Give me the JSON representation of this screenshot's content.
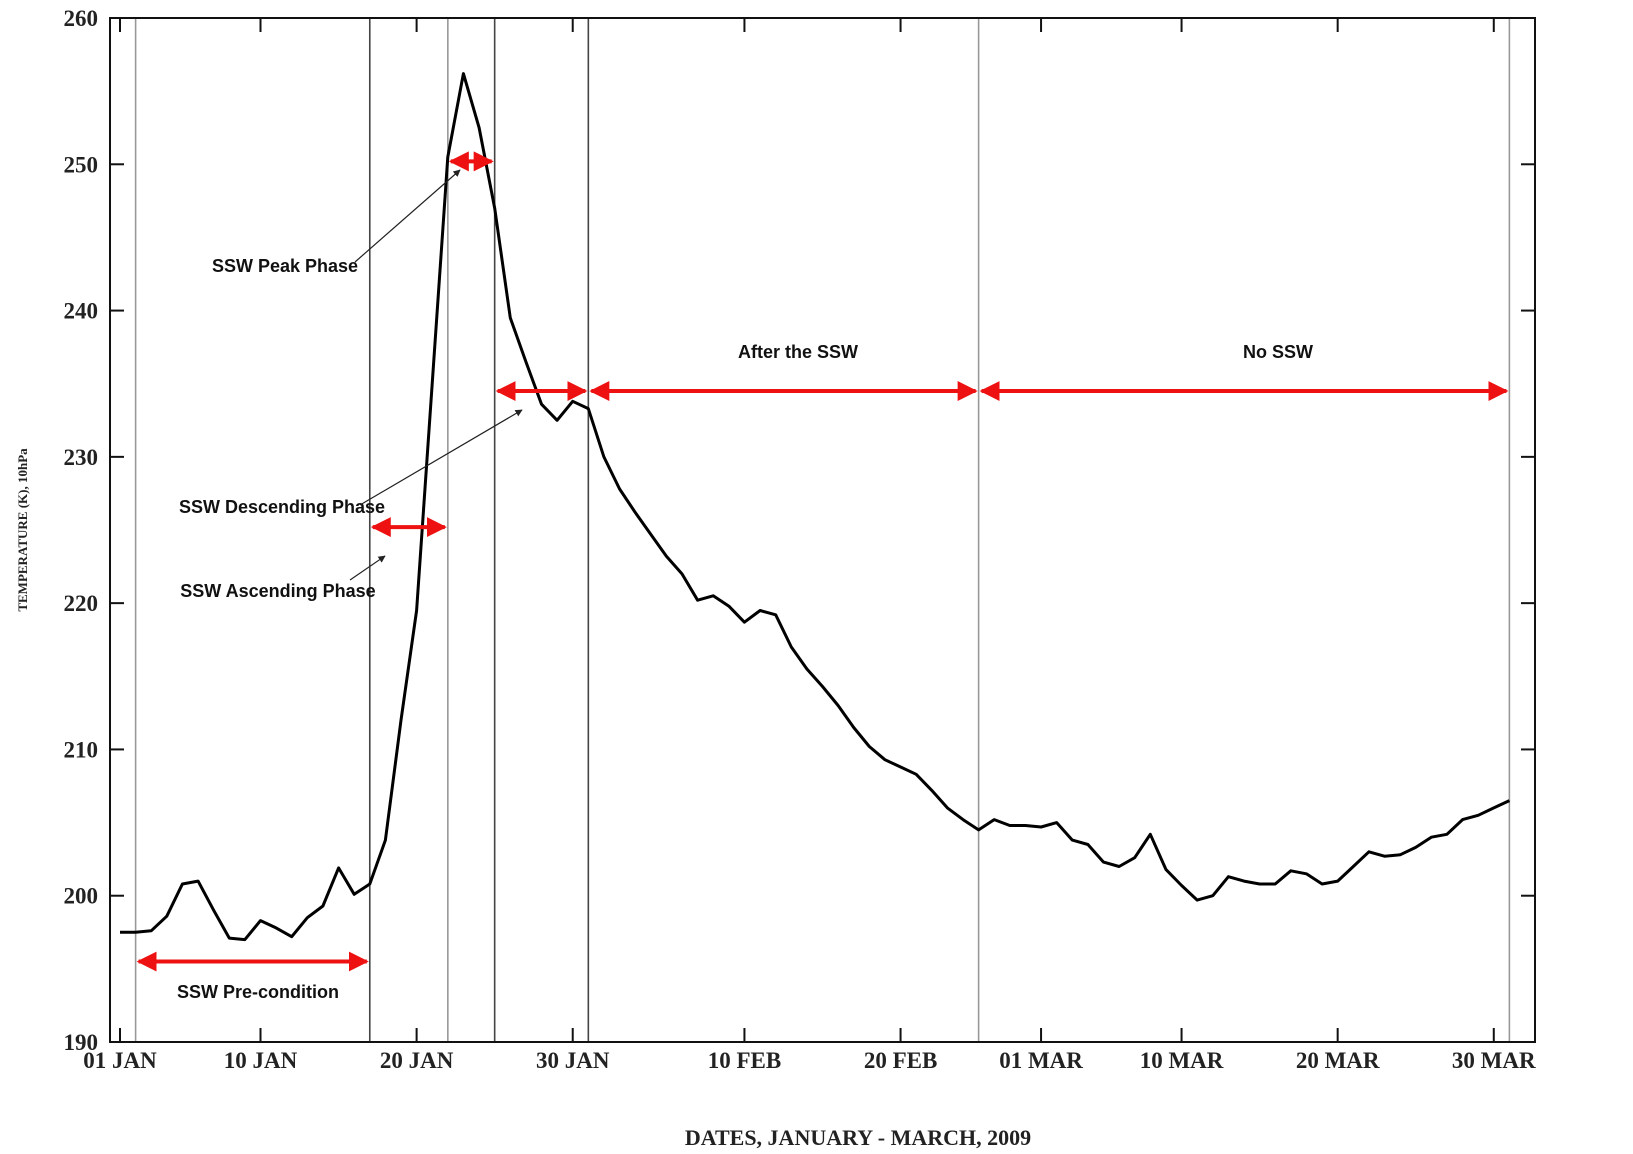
{
  "chart_data": {
    "type": "line",
    "title": "",
    "xlabel": "DATES, JANUARY - MARCH, 2009",
    "ylabel": "TEMPERATURE (K), 10hPa",
    "ylim": [
      190,
      260
    ],
    "xlim": [
      1,
      91
    ],
    "yticks": [
      190,
      200,
      210,
      220,
      230,
      240,
      250,
      260
    ],
    "xticks": [
      {
        "day": 1,
        "label": "01 JAN"
      },
      {
        "day": 10,
        "label": "10 JAN"
      },
      {
        "day": 20,
        "label": "20 JAN"
      },
      {
        "day": 30,
        "label": "30 JAN"
      },
      {
        "day": 41,
        "label": "10 FEB"
      },
      {
        "day": 51,
        "label": "20 FEB"
      },
      {
        "day": 60,
        "label": "01 MAR"
      },
      {
        "day": 69,
        "label": "10 MAR"
      },
      {
        "day": 79,
        "label": "20 MAR"
      },
      {
        "day": 89,
        "label": "30 MAR"
      }
    ],
    "grid": false,
    "series": [
      {
        "x": [
          1,
          2,
          3,
          4,
          5,
          6,
          7,
          8,
          9,
          10,
          11,
          12,
          13,
          14,
          15,
          16,
          17,
          18,
          19,
          20,
          21,
          22,
          23,
          24,
          25,
          26,
          27,
          28,
          29,
          30,
          31,
          32,
          33,
          34,
          35,
          36,
          37,
          38,
          39,
          40,
          41,
          42,
          43,
          44,
          45,
          46,
          47,
          48,
          49,
          50,
          51,
          52,
          53,
          54,
          55,
          56,
          57,
          58,
          59,
          60,
          61,
          62,
          63,
          64,
          65,
          66,
          67,
          68,
          69,
          70,
          71,
          72,
          73,
          74,
          75,
          76,
          77,
          78,
          79,
          80,
          81,
          82,
          83,
          84,
          85,
          86,
          87,
          88,
          89,
          90
        ],
        "y": [
          197.5,
          197.5,
          197.6,
          198.6,
          200.8,
          201.0,
          199.0,
          197.1,
          197.0,
          198.3,
          197.8,
          197.2,
          198.5,
          199.3,
          201.9,
          200.1,
          200.8,
          203.8,
          212.0,
          219.5,
          235.0,
          250.5,
          256.2,
          252.5,
          247.0,
          239.5,
          236.5,
          233.6,
          232.5,
          233.8,
          233.3,
          230.0,
          227.8,
          226.2,
          224.7,
          223.2,
          222.0,
          220.2,
          220.5,
          219.8,
          218.7,
          219.5,
          219.2,
          217.0,
          215.5,
          214.3,
          213.0,
          211.5,
          210.2,
          209.3,
          208.8,
          208.3,
          207.2,
          206.0,
          205.2,
          204.5,
          205.2,
          204.8,
          204.8,
          204.7,
          205.0,
          203.8,
          203.5,
          202.3,
          202.0,
          202.6,
          204.2,
          201.8,
          200.7,
          199.7,
          200.0,
          201.3,
          201.0,
          200.8,
          200.8,
          201.7,
          201.5,
          200.8,
          201.0,
          202.0,
          203.0,
          202.7,
          202.8,
          203.3,
          204.0,
          204.2,
          205.2,
          205.5,
          206.0,
          206.5
        ]
      }
    ],
    "phase_boundaries_day": [
      2,
      17,
      22,
      25,
      31,
      56,
      90
    ],
    "annotations": [
      {
        "text": "SSW  Pre-condition",
        "from_day": 2,
        "to_day": 17,
        "y": 195.5
      },
      {
        "text": "SSW  Ascending Phase",
        "from_day": 17,
        "to_day": 22,
        "y": 225.2
      },
      {
        "text": "SSW  Peak Phase",
        "from_day": 22,
        "to_day": 25,
        "y": 250.2
      },
      {
        "text": "SSW  Descending Phase",
        "from_day": 25,
        "to_day": 31,
        "y": 234.5
      },
      {
        "text": "After the SSW",
        "from_day": 31,
        "to_day": 56,
        "y": 234.5
      },
      {
        "text": "No SSW",
        "from_day": 56,
        "to_day": 90,
        "y": 234.5
      }
    ],
    "colors": {
      "line": "#000000",
      "arrows": "#ee1111",
      "boundaries": "#888888"
    }
  }
}
